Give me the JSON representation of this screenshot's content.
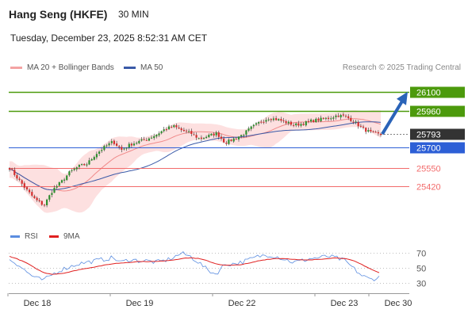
{
  "header": {
    "title": "Hang Seng (HKFE)",
    "timeframe": "30 MIN",
    "datetime": "Tuesday, December 23, 2025 8:52:31 AM CET"
  },
  "legend": {
    "ma20_bb": "MA 20 + Bollinger Bands",
    "ma50": "MA 50",
    "credit": "Research © 2025 Trading Central",
    "rsi": "RSI",
    "rsi_ma": "9MA"
  },
  "colors": {
    "resistance": "#4c9a0c",
    "pivot": "#2d5fd6",
    "support": "#f26b6b",
    "current": "#333333",
    "bollinger_fill": "#fde0e0",
    "ma20": "#f08a8a",
    "ma50": "#3a5aa8",
    "candle_up": "#2f8f2f",
    "candle_down": "#d42e2e",
    "rsi": "#5b8de0",
    "rsi_ma": "#e02020",
    "arrow": "#2a63b8"
  },
  "chart_data": [
    {
      "type": "candlestick",
      "title": "Hang Seng (HKFE)",
      "timeframe": "30 MIN",
      "x_labels": [
        "Dec 18",
        "Dec 19",
        "Dec 22",
        "Dec 23",
        "Dec 30"
      ],
      "ylim": [
        25120,
        26190
      ],
      "levels": [
        {
          "value": 26100,
          "label": "26100",
          "kind": "resistance"
        },
        {
          "value": 25960,
          "label": "25960",
          "kind": "resistance"
        },
        {
          "value": 25793,
          "label": "25793",
          "kind": "current"
        },
        {
          "value": 25700,
          "label": "25700",
          "kind": "pivot"
        },
        {
          "value": 25550,
          "label": "25550",
          "kind": "support"
        },
        {
          "value": 25420,
          "label": "25420",
          "kind": "support"
        }
      ],
      "forecast_arrow": {
        "from": 25795,
        "to": 26100
      },
      "close_path": [
        25550,
        25470,
        25390,
        25320,
        25280,
        25390,
        25450,
        25520,
        25560,
        25580,
        25650,
        25700,
        25740,
        25680,
        25720,
        25740,
        25760,
        25790,
        25830,
        25850,
        25820,
        25800,
        25760,
        25780,
        25800,
        25730,
        25760,
        25790,
        25840,
        25880,
        25910,
        25900,
        25880,
        25860,
        25870,
        25890,
        25900,
        25910,
        25930,
        25920,
        25880,
        25830,
        25800,
        25790
      ]
    },
    {
      "type": "line",
      "title": "RSI",
      "ylim": [
        23,
        77
      ],
      "y_ticks": [
        70,
        50,
        30
      ],
      "series": [
        {
          "name": "RSI",
          "values": [
            62,
            55,
            45,
            37,
            34,
            42,
            48,
            52,
            56,
            58,
            60,
            62,
            64,
            58,
            62,
            60,
            60,
            58,
            60,
            64,
            70,
            66,
            58,
            48,
            42,
            55,
            56,
            58,
            62,
            66,
            68,
            66,
            62,
            58,
            60,
            63,
            64,
            66,
            64,
            60,
            50,
            40,
            35,
            38
          ]
        },
        {
          "name": "9MA",
          "values": [
            66,
            62,
            57,
            50,
            44,
            42,
            43,
            45,
            48,
            50,
            52,
            54,
            56,
            57,
            58,
            59,
            59,
            59,
            60,
            61,
            63,
            64,
            63,
            60,
            56,
            54,
            54,
            55,
            57,
            60,
            62,
            63,
            63,
            62,
            61,
            61,
            62,
            63,
            64,
            63,
            60,
            55,
            49,
            44
          ]
        }
      ]
    }
  ]
}
